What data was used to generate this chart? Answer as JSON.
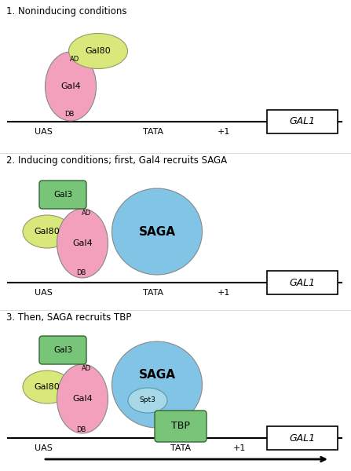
{
  "title1": "1. Noninducing conditions",
  "title2": "2. Inducing conditions; first, Gal4 recruits SAGA",
  "title3": "3. Then, SAGA recruits TBP",
  "color_pink": "#F2A0BC",
  "color_yellow_green": "#D8E87A",
  "color_blue": "#82C4E6",
  "color_green": "#78C478",
  "color_light_blue": "#A8D8E8",
  "background": "#FFFFFF"
}
